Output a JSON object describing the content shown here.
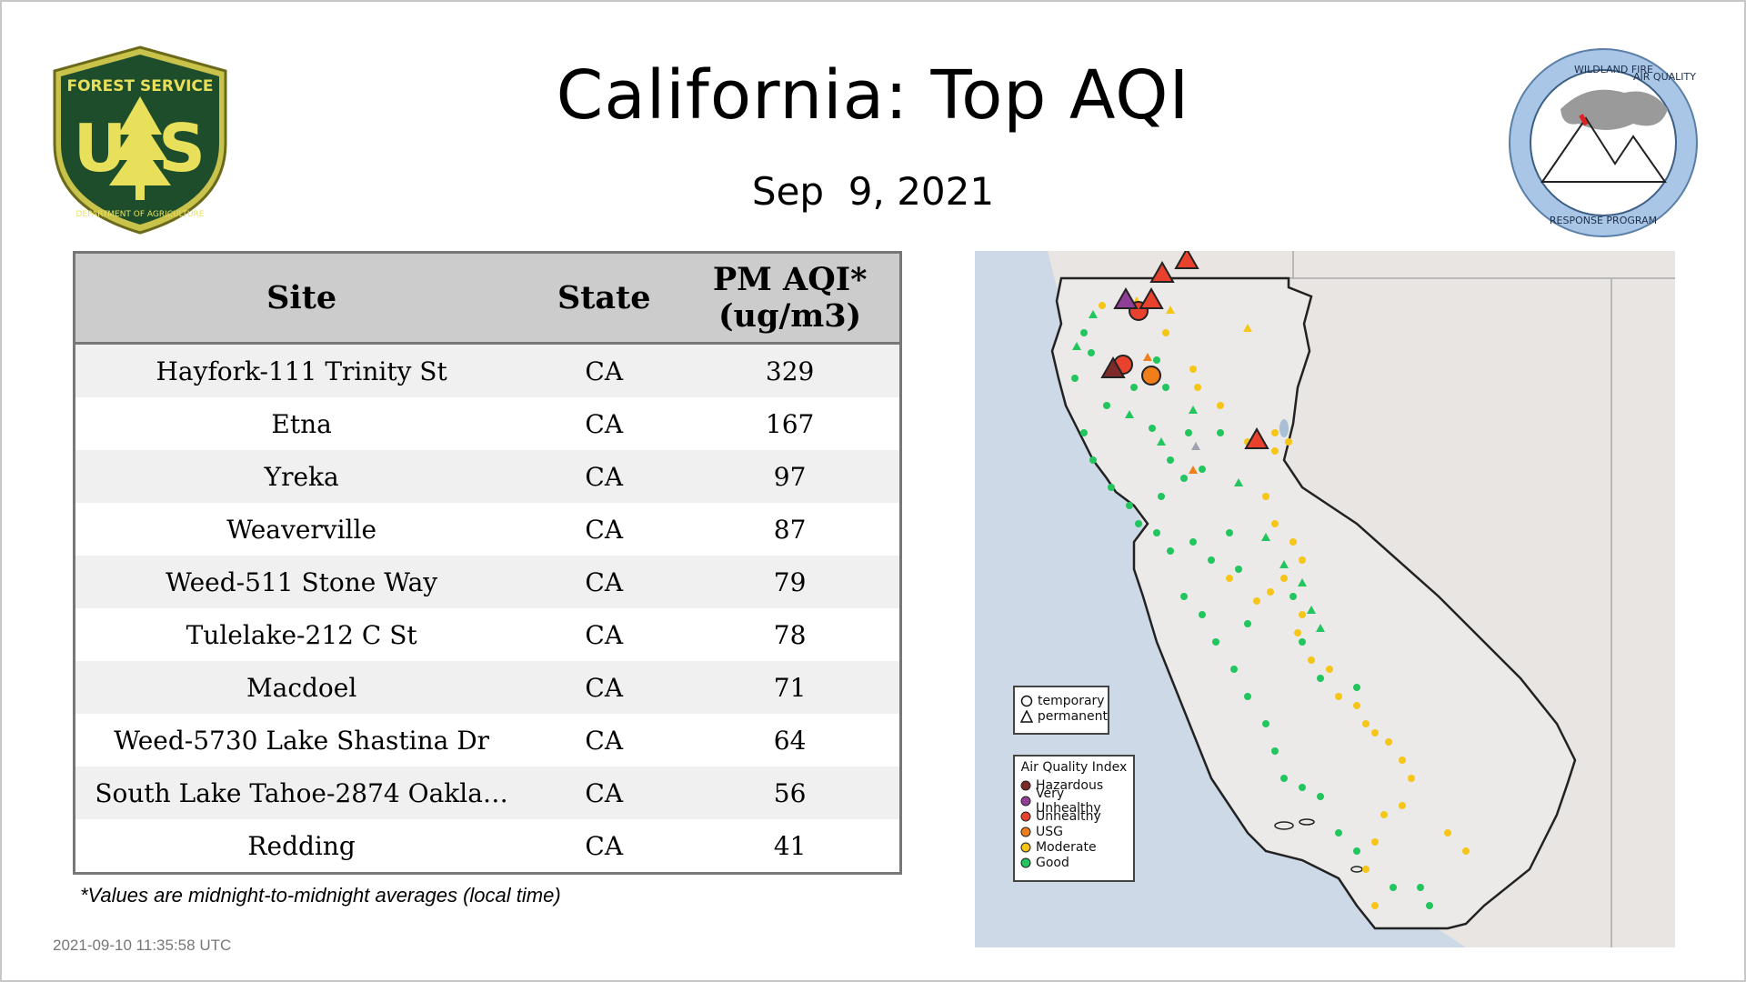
{
  "header": {
    "title": "California: Top AQI",
    "date": "Sep  9, 2021"
  },
  "logos": {
    "left": {
      "icon": "forest-service-shield",
      "lines": [
        "FOREST SERVICE",
        "U",
        "S",
        "DEPARTMENT OF AGRICULTURE"
      ]
    },
    "right": {
      "icon": "wildland-fire-seal",
      "lines": [
        "WILDLAND FIRE",
        "AIR QUALITY",
        "RESPONSE PROGRAM"
      ]
    }
  },
  "table": {
    "headers": {
      "site": "Site",
      "state": "State",
      "value_line1": "PM AQI*",
      "value_line2": "(ug/m3)"
    },
    "rows": [
      {
        "site": "Hayfork-111 Trinity St",
        "state": "CA",
        "value": "329"
      },
      {
        "site": "Etna",
        "state": "CA",
        "value": "167"
      },
      {
        "site": "Yreka",
        "state": "CA",
        "value": "97"
      },
      {
        "site": "Weaverville",
        "state": "CA",
        "value": "87"
      },
      {
        "site": "Weed-511 Stone Way",
        "state": "CA",
        "value": "79"
      },
      {
        "site": "Tulelake-212 C St",
        "state": "CA",
        "value": "78"
      },
      {
        "site": "Macdoel",
        "state": "CA",
        "value": "71"
      },
      {
        "site": "Weed-5730 Lake Shastina Dr",
        "state": "CA",
        "value": "64"
      },
      {
        "site": "South Lake Tahoe-2874 Oakla…",
        "state": "CA",
        "value": "56"
      },
      {
        "site": "Redding",
        "state": "CA",
        "value": "41"
      }
    ]
  },
  "footnote": "*Values are midnight-to-midnight averages (local time)",
  "timestamp": "2021-09-10 11:35:58 UTC",
  "map": {
    "legend_type": {
      "temporary": "temporary",
      "permanent": "permanent"
    },
    "legend_aqi": {
      "title": "Air Quality Index",
      "items": [
        {
          "label": "Hazardous",
          "color": "#7e2a2a"
        },
        {
          "label": "Very Unhealthy",
          "color": "#8f3f97"
        },
        {
          "label": "Unhealthy",
          "color": "#e8412d"
        },
        {
          "label": "USG",
          "color": "#f07e1a"
        },
        {
          "label": "Moderate",
          "color": "#f5c518"
        },
        {
          "label": "Good",
          "color": "#22c55e"
        }
      ]
    },
    "colors": {
      "water": "#cdd9e6",
      "land": "#ece9e6",
      "border": "#222222"
    }
  }
}
